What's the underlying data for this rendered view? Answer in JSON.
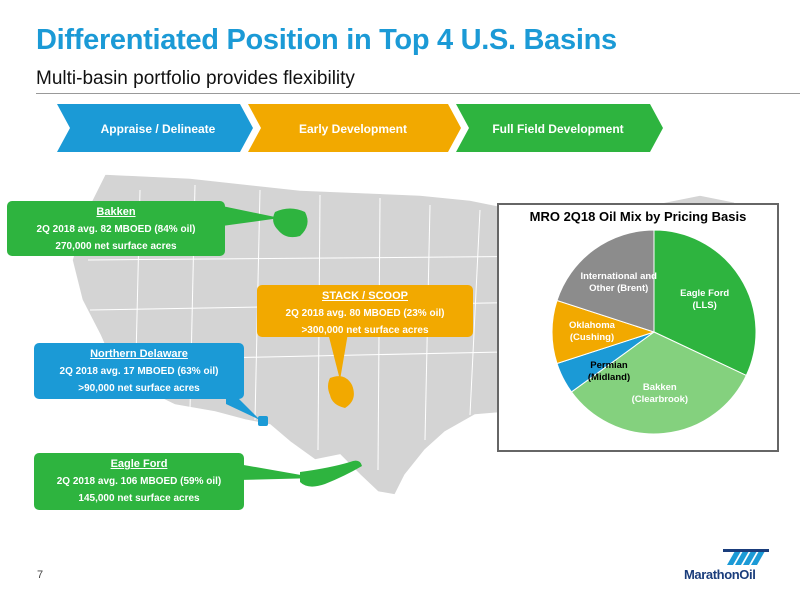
{
  "header": {
    "title": "Differentiated Position in Top 4 U.S. Basins",
    "subtitle": "Multi-basin portfolio provides flexibility"
  },
  "stages": [
    {
      "label": "Appraise / Delineate",
      "color": "#1b9ad6"
    },
    {
      "label": "Early Development",
      "color": "#f2a900"
    },
    {
      "label": "Full Field Development",
      "color": "#2eb43f"
    }
  ],
  "basins": {
    "bakken": {
      "name": "Bakken",
      "line1": "2Q 2018 avg. 82 MBOED (84% oil)",
      "line2": "270,000 net surface acres",
      "color": "#2eb43f"
    },
    "stack": {
      "name": "STACK / SCOOP",
      "line1": "2Q 2018 avg. 80 MBOED (23% oil)",
      "line2": ">300,000 net surface acres",
      "color": "#f2a900"
    },
    "delaware": {
      "name": "Northern Delaware",
      "line1": "2Q 2018 avg. 17 MBOED (63% oil)",
      "line2": ">90,000 net surface acres",
      "color": "#1b9ad6"
    },
    "eagle": {
      "name": "Eagle Ford",
      "line1": "2Q 2018 avg. 106 MBOED (59% oil)",
      "line2": "145,000 net surface acres",
      "color": "#2eb43f"
    }
  },
  "chart_data": {
    "type": "pie",
    "title": "MRO 2Q18 Oil Mix by Pricing Basis",
    "slices": [
      {
        "label": "Eagle Ford (LLS)",
        "line1": "Eagle Ford",
        "line2": "(LLS)",
        "value": 32,
        "color": "#2eb43f"
      },
      {
        "label": "Bakken (Clearbrook)",
        "line1": "Bakken",
        "line2": "(Clearbrook)",
        "value": 33,
        "color": "#84d17e"
      },
      {
        "label": "Permian (Midland)",
        "line1": "Permian",
        "line2": "(Midland)",
        "value": 5,
        "color": "#1b9ad6"
      },
      {
        "label": "Oklahoma (Cushing)",
        "line1": "Oklahoma",
        "line2": "(Cushing)",
        "value": 10,
        "color": "#f2a900"
      },
      {
        "label": "International and Other (Brent)",
        "line1": "International and",
        "line2": "Other (Brent)",
        "value": 20,
        "color": "#8c8c8c"
      }
    ]
  },
  "footer": {
    "page": "7",
    "logo": "MarathonOil"
  }
}
